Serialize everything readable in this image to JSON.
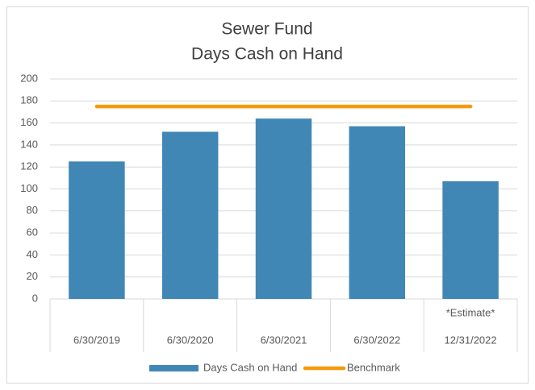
{
  "chart_data": {
    "type": "bar",
    "title": "Sewer Fund",
    "subtitle": "Days Cash on Hand",
    "categories": [
      "6/30/2019",
      "6/30/2020",
      "6/30/2021",
      "6/30/2022",
      "12/31/2022"
    ],
    "category_notes": [
      null,
      null,
      null,
      null,
      "*Estimate*"
    ],
    "series": [
      {
        "name": "Days Cash on Hand",
        "type": "bar",
        "color": "#4187b5",
        "values": [
          125,
          152,
          164,
          157,
          107
        ]
      },
      {
        "name": "Benchmark",
        "type": "line",
        "color": "#f59a0c",
        "values": [
          175,
          175,
          175,
          175,
          175
        ]
      }
    ],
    "ylim": [
      0,
      200
    ],
    "yticks": [
      0,
      20,
      40,
      60,
      80,
      100,
      120,
      140,
      160,
      180,
      200
    ],
    "grid": true,
    "legend": "bottom"
  }
}
